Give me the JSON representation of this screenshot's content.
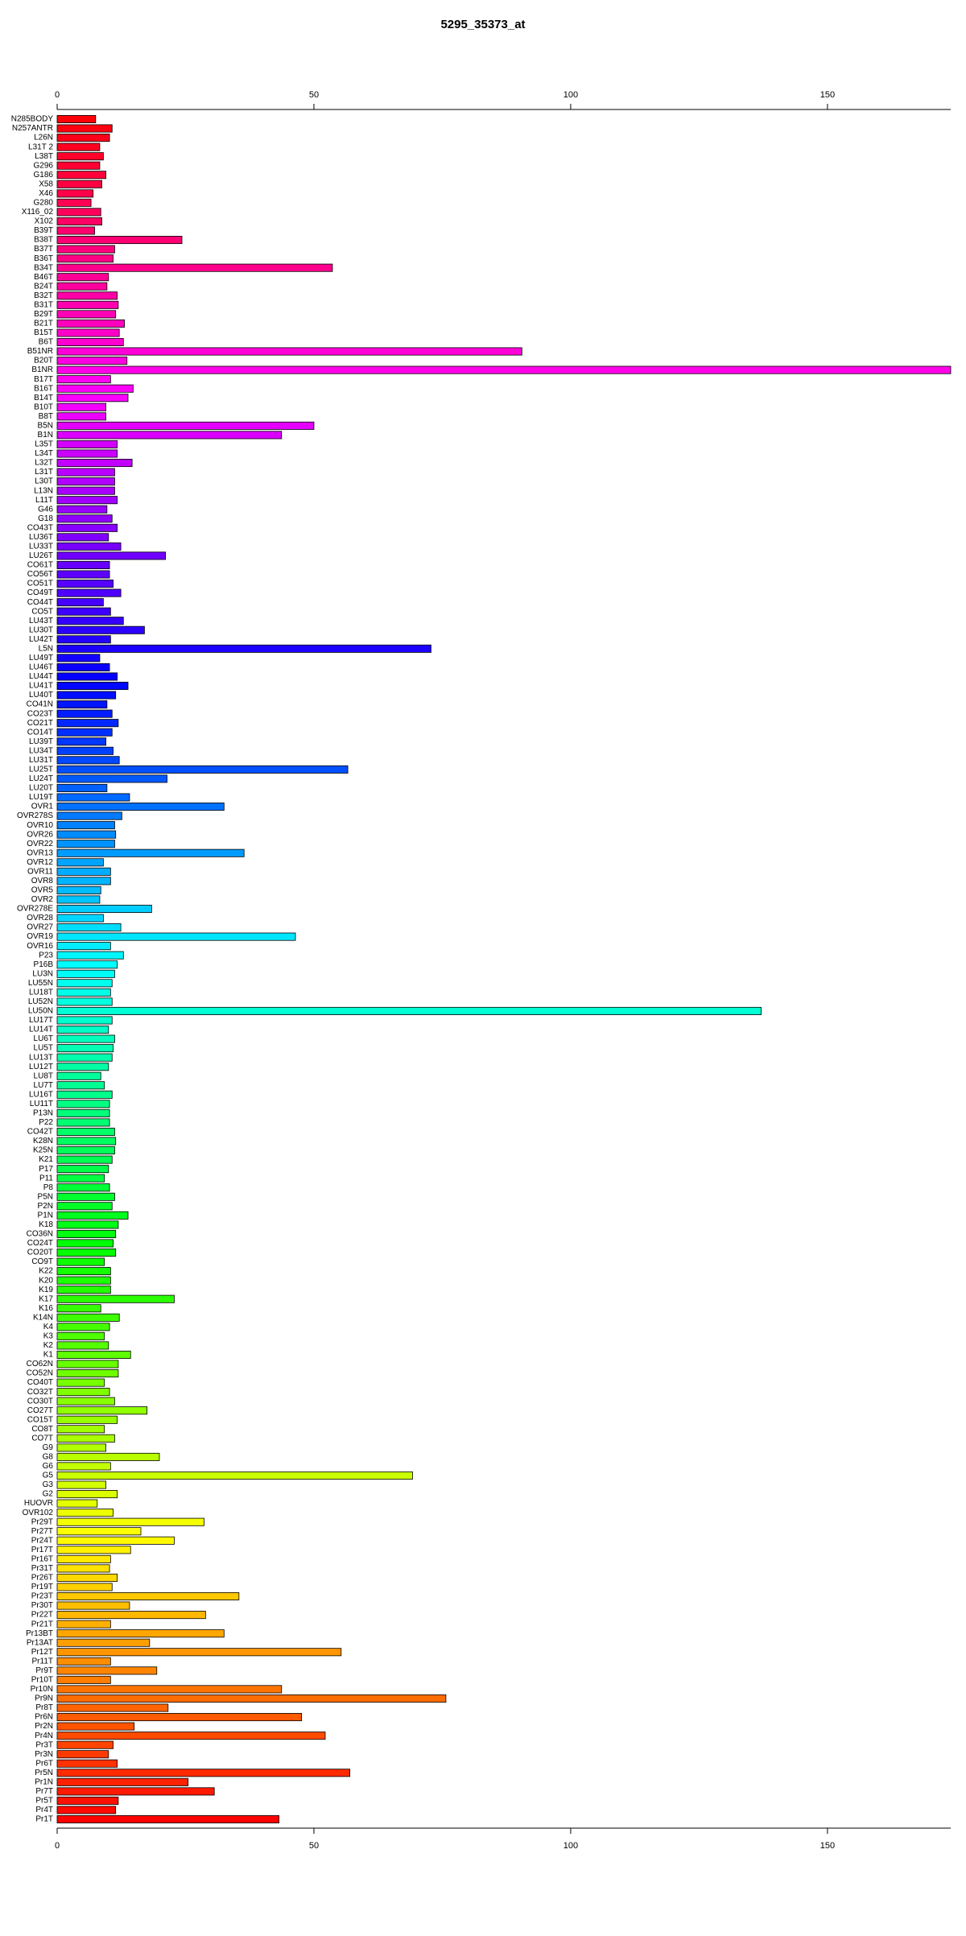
{
  "chart_data": {
    "type": "bar",
    "orientation": "horizontal",
    "title": "5295_35373_at",
    "categories": [
      "N285BODY",
      "N257ANTR",
      "L26N",
      "L31T 2",
      "L38T",
      "G296",
      "G186",
      "X58",
      "X46",
      "G280",
      "X116_02",
      "X102",
      "B39T",
      "B38T",
      "B37T",
      "B36T",
      "B34T",
      "B46T",
      "B24T",
      "B32T",
      "B31T",
      "B29T",
      "B21T",
      "B15T",
      "B6T",
      "B51NR",
      "B20T",
      "B1NR",
      "B17T",
      "B16T",
      "B14T",
      "B10T",
      "B8T",
      "B5N",
      "B1N",
      "L35T",
      "L34T",
      "L32T",
      "L31T",
      "L30T",
      "L13N",
      "L11T",
      "G46",
      "G18",
      "CO43T",
      "LU36T",
      "LU33T",
      "LU26T",
      "CO61T",
      "CO56T",
      "CO51T",
      "CO49T",
      "CO44T",
      "CO5T",
      "LU43T",
      "LU30T",
      "LU42T",
      "L5N",
      "LU49T",
      "LU46T",
      "LU44T",
      "LU41T",
      "LU40T",
      "CO41N",
      "CO23T",
      "CO21T",
      "CO14T",
      "LU39T",
      "LU34T",
      "LU31T",
      "LU25T",
      "LU24T",
      "LU20T",
      "LU19T",
      "OVR1",
      "OVR278S",
      "OVR10",
      "OVR26",
      "OVR22",
      "OVR13",
      "OVR12",
      "OVR11",
      "OVR8",
      "OVR5",
      "OVR2",
      "OVR278E",
      "OVR28",
      "OVR27",
      "OVR19",
      "OVR16",
      "P23",
      "P16B",
      "LU3N",
      "LU55N",
      "LU18T",
      "LU52N",
      "LU50N",
      "LU17T",
      "LU14T",
      "LU6T",
      "LU5T",
      "LU13T",
      "LU12T",
      "LU8T",
      "LU7T",
      "LU16T",
      "LU11T",
      "P13N",
      "P22",
      "CO42T",
      "K28N",
      "K25N",
      "K21",
      "P17",
      "P11",
      "P8",
      "P5N",
      "P2N",
      "P1N",
      "K18",
      "CO36N",
      "CO24T",
      "CO20T",
      "CO9T",
      "K22",
      "K20",
      "K19",
      "K17",
      "K16",
      "K14N",
      "K4",
      "K3",
      "K2",
      "K1",
      "CO62N",
      "CO52N",
      "CO40T",
      "CO32T",
      "CO30T",
      "CO27T",
      "CO15T",
      "CO8T",
      "CO7T",
      "G9",
      "G8",
      "G6",
      "G5",
      "G3",
      "G2",
      "HUOVR",
      "OVR102",
      "Pr29T",
      "Pr27T",
      "Pr24T",
      "Pr17T",
      "Pr16T",
      "Pr31T",
      "Pr26T",
      "Pr19T",
      "Pr23T",
      "Pr30T",
      "Pr22T",
      "Pr21T",
      "Pr13BT",
      "Pr13AT",
      "Pr12T",
      "Pr11T",
      "Pr9T",
      "Pr10T",
      "Pr10N",
      "Pr9N",
      "Pr8T",
      "Pr6N",
      "Pr2N",
      "Pr4N",
      "Pr3T",
      "Pr3N",
      "Pr6T",
      "Pr5N",
      "Pr1N",
      "Pr7T",
      "Pr5T",
      "Pr4T",
      "Pr1T"
    ],
    "values": [
      7.5,
      10.7,
      10.2,
      8.3,
      9,
      8.3,
      9.5,
      8.7,
      7,
      6.6,
      8.5,
      8.7,
      7.3,
      24.3,
      11.2,
      10.9,
      53.6,
      10,
      9.7,
      11.7,
      11.9,
      11.4,
      13.1,
      12.1,
      12.9,
      90.5,
      13.6,
      174,
      10.4,
      14.8,
      13.8,
      9.5,
      9.5,
      50,
      43.7,
      11.7,
      11.7,
      14.6,
      11.2,
      11.2,
      11.2,
      11.7,
      9.7,
      10.7,
      11.7,
      10,
      12.4,
      21.1,
      10.2,
      10.2,
      10.9,
      12.4,
      9,
      10.4,
      12.9,
      17,
      10.4,
      72.8,
      8.3,
      10.2,
      11.7,
      13.8,
      11.4,
      9.7,
      10.7,
      11.9,
      10.7,
      9.5,
      10.9,
      12.1,
      56.6,
      21.4,
      9.7,
      14.1,
      32.5,
      12.6,
      11.2,
      11.4,
      11.2,
      36.4,
      9,
      10.4,
      10.4,
      8.5,
      8.3,
      18.4,
      9,
      12.4,
      46.4,
      10.4,
      12.9,
      11.7,
      11.2,
      10.7,
      10.4,
      10.7,
      137.1,
      10.7,
      10,
      11.2,
      10.9,
      10.7,
      10,
      8.5,
      9.2,
      10.7,
      10.2,
      10.2,
      10.2,
      11.2,
      11.4,
      11.2,
      10.7,
      10,
      9.2,
      10.2,
      11.2,
      10.7,
      13.8,
      11.9,
      11.4,
      10.9,
      11.4,
      9.2,
      10.4,
      10.4,
      10.4,
      22.8,
      8.5,
      12.1,
      10.2,
      9.2,
      10,
      14.3,
      11.9,
      11.9,
      9.2,
      10.2,
      11.2,
      17.5,
      11.7,
      9.2,
      11.2,
      9.5,
      19.9,
      10.4,
      69.2,
      9.5,
      11.7,
      7.8,
      10.9,
      28.6,
      16.3,
      22.8,
      14.3,
      10.4,
      10.2,
      11.7,
      10.7,
      35.4,
      14.1,
      28.9,
      10.4,
      32.5,
      18,
      55.3,
      10.4,
      19.4,
      10.4,
      43.7,
      75.7,
      21.6,
      47.6,
      15,
      52.2,
      10.9,
      10,
      11.7,
      57,
      25.5,
      30.6,
      11.9,
      11.4,
      43.2
    ],
    "xlim": [
      0,
      174
    ],
    "xticks": [
      0,
      50,
      100,
      150
    ],
    "colormap": "rainbow"
  }
}
